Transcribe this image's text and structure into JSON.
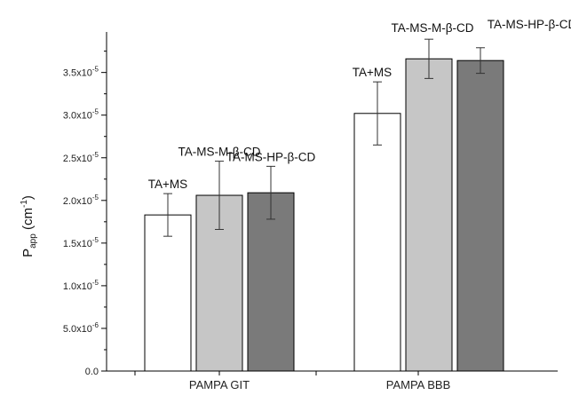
{
  "chart_data": {
    "type": "bar",
    "title": "",
    "xlabel": "",
    "ylabel": {
      "main": "P",
      "sub": "app",
      "unit": " (cm",
      "sup": "-1",
      "close": ")"
    },
    "ylim": [
      0,
      3.9e-05
    ],
    "yticks": [
      {
        "value": 0.0,
        "label": "0.0"
      },
      {
        "value": 5e-06,
        "mant": "5.0x10",
        "exp": "-6"
      },
      {
        "value": 1e-05,
        "mant": "1.0x10",
        "exp": "-5"
      },
      {
        "value": 1.5e-05,
        "mant": "1.5x10",
        "exp": "-5"
      },
      {
        "value": 2e-05,
        "mant": "2.0x10",
        "exp": "-5"
      },
      {
        "value": 2.5e-05,
        "mant": "2.5x10",
        "exp": "-5"
      },
      {
        "value": 3e-05,
        "mant": "3.0x10",
        "exp": "-5"
      },
      {
        "value": 3.5e-05,
        "mant": "3.5x10",
        "exp": "-5"
      }
    ],
    "categories": [
      "PAMPA GIT",
      "PAMPA BBB"
    ],
    "series": [
      {
        "label": "TA+MS",
        "color": "#ffffff",
        "values": [
          1.83e-05,
          3.02e-05
        ],
        "errors": [
          2.5e-06,
          3.7e-06
        ]
      },
      {
        "label": "TA-MS-M-β-CD",
        "color": "#c6c6c6",
        "values": [
          2.06e-05,
          3.66e-05
        ],
        "errors": [
          4e-06,
          2.3e-06
        ]
      },
      {
        "label": "TA-MS-HP-β-CD",
        "color": "#7a7a7a",
        "values": [
          2.09e-05,
          3.64e-05
        ],
        "errors": [
          3.1e-06,
          1.5e-06
        ]
      }
    ],
    "grid": false,
    "legend": "none"
  }
}
